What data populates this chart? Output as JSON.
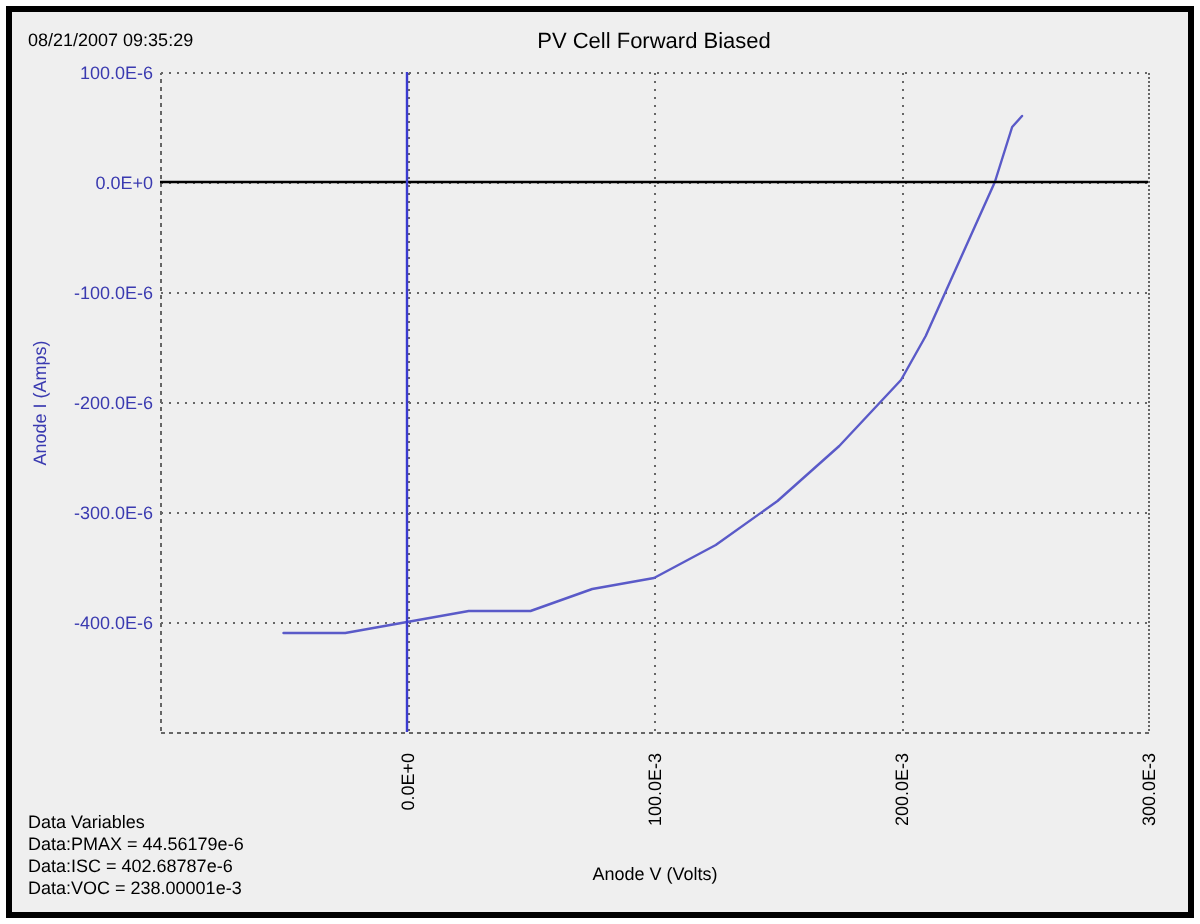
{
  "chart_data": {
    "type": "line",
    "title": "PV Cell Forward Biased",
    "xlabel": "Anode V (Volts)",
    "ylabel": "Anode I (Amps)",
    "annotations": [
      "08/21/2007 09:35:29",
      "Data Variables",
      "Data:PMAX = 44.56179e-6",
      "Data:ISC = 402.68787e-6",
      "Data:VOC = 238.00001e-3"
    ],
    "x": [
      -0.05,
      -0.025,
      0,
      0.025,
      0.05,
      0.075,
      0.1,
      0.125,
      0.15,
      0.175,
      0.2,
      0.21,
      0.22,
      0.23,
      0.238,
      0.245,
      0.249
    ],
    "series": [
      {
        "color": "#5a5ac8",
        "values": [
          -0.00041,
          -0.00041,
          -0.0004,
          -0.00039,
          -0.00039,
          -0.00037,
          -0.00036,
          -0.00033,
          -0.00029,
          -0.00024,
          -0.00018,
          -0.00014,
          -9e-05,
          -4e-05,
          0,
          5e-05,
          6e-05
        ]
      }
    ],
    "xlim": [
      -0.1,
      0.3
    ],
    "ylim": [
      -0.0005,
      0.0001
    ],
    "xticks": [
      {
        "value": -0.1,
        "label": null
      },
      {
        "value": 0,
        "label": "0.0E+0"
      },
      {
        "value": 0.1,
        "label": "100.0E-3"
      },
      {
        "value": 0.2,
        "label": "200.0E-3"
      },
      {
        "value": 0.3,
        "label": "300.0E-3"
      }
    ],
    "yticks": [
      {
        "value": 0.0001,
        "label": "100.0E-6"
      },
      {
        "value": 0,
        "label": "0.0E+0"
      },
      {
        "value": -0.0001,
        "label": "-100.0E-6"
      },
      {
        "value": -0.0002,
        "label": "-200.0E-6"
      },
      {
        "value": -0.0003,
        "label": "-300.0E-6"
      },
      {
        "value": -0.0004,
        "label": "-400.0E-6"
      },
      {
        "value": -0.0005,
        "label": null
      }
    ],
    "ref_lines": [
      {
        "axis": "y",
        "value": 0,
        "color": "#000000"
      },
      {
        "axis": "x",
        "value": 0,
        "color": "#3a3ad0"
      }
    ],
    "grid": true,
    "marker": "none",
    "line_style": "solid"
  }
}
